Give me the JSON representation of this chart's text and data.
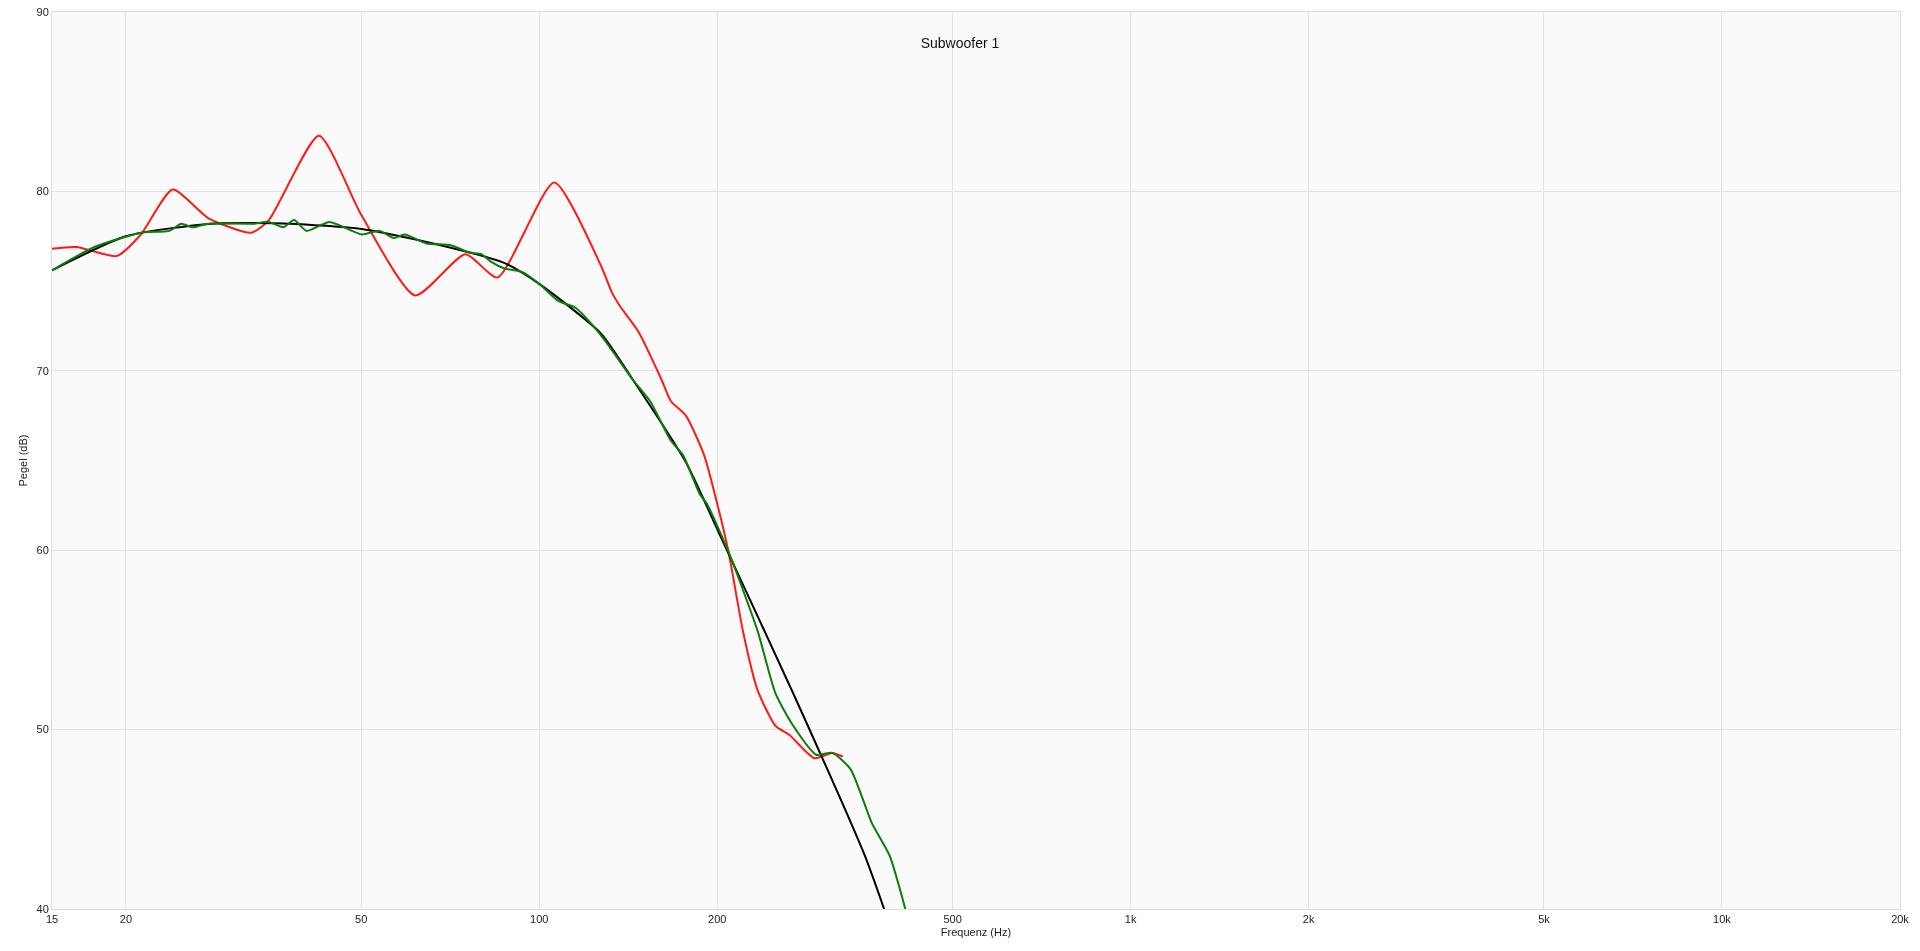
{
  "chart_data": {
    "type": "line",
    "title": "Subwoofer 1",
    "xlabel": "Frequenz (Hz)",
    "ylabel": "Pegel (dB)",
    "log": "x",
    "grid": true,
    "marker": "none",
    "line_style": "solid",
    "xlim": [
      15,
      20000
    ],
    "xticks": [
      15,
      20,
      50,
      100,
      200,
      500,
      {
        "value": 1000,
        "label": "1k"
      },
      {
        "value": 2000,
        "label": "2k"
      },
      {
        "value": 5000,
        "label": "5k"
      },
      {
        "value": 10000,
        "label": "10k"
      },
      {
        "value": 20000,
        "label": "20k"
      }
    ],
    "ylim": [
      40,
      90
    ],
    "yticks": [
      40,
      50,
      60,
      70,
      80,
      90
    ],
    "series": [
      {
        "color": "#ff1a1a",
        "x": [
          15,
          16.5,
          19.3,
          21.2,
          24.0,
          27.6,
          32.6,
          34.9,
          42.4,
          50,
          61.7,
          75,
          85,
          106,
          127,
          133,
          137,
          147,
          161,
          167,
          177,
          190,
          201,
          209,
          221,
          234,
          251,
          265,
          292,
          313,
          326
        ],
        "values": [
          76.8,
          76.9,
          76.4,
          77.6,
          80.1,
          78.5,
          77.7,
          78.4,
          83.1,
          78.7,
          74.2,
          76.5,
          75.2,
          80.5,
          75.9,
          74.3,
          73.6,
          72.2,
          69.5,
          68.3,
          67.5,
          65.3,
          62.3,
          59.9,
          55.5,
          52.2,
          50.2,
          49.7,
          48.4,
          48.7,
          48.5
        ]
      },
      {
        "color": "#000000",
        "x": [
          15,
          20,
          27.9,
          37.9,
          50.1,
          66.2,
          87.4,
          100.4,
          127,
          144,
          177,
          203,
          269,
          355,
          383
        ],
        "values": [
          75.6,
          77.5,
          78.2,
          78.2,
          77.9,
          77.1,
          76.0,
          74.8,
          72.1,
          69.5,
          64.9,
          60.7,
          52.0,
          43.0,
          40.0
        ]
      },
      {
        "color": "#0a7d0a",
        "x": [
          15,
          17.7,
          21.2,
          23.7,
          24.8,
          25.9,
          27.6,
          33.0,
          34.9,
          36.9,
          38.5,
          40.4,
          44.2,
          50.1,
          53.7,
          56.8,
          59.2,
          64.4,
          70.9,
          76.0,
          79.8,
          82.7,
          87.4,
          93.7,
          100.4,
          107.6,
          115.3,
          127,
          144,
          154,
          167,
          175,
          187,
          192,
          209,
          234,
          251,
          269,
          294,
          313,
          336,
          365,
          391,
          416
        ],
        "values": [
          75.6,
          76.9,
          77.7,
          77.8,
          78.2,
          78.0,
          78.2,
          78.2,
          78.3,
          78.0,
          78.4,
          77.8,
          78.3,
          77.6,
          77.8,
          77.4,
          77.6,
          77.1,
          77.0,
          76.6,
          76.5,
          76.1,
          75.7,
          75.5,
          74.8,
          73.9,
          73.5,
          72.0,
          69.5,
          68.3,
          66.1,
          65.3,
          63.1,
          62.6,
          59.9,
          55.5,
          52.0,
          50.2,
          48.6,
          48.7,
          47.8,
          44.8,
          43.0,
          40.0
        ]
      }
    ]
  }
}
